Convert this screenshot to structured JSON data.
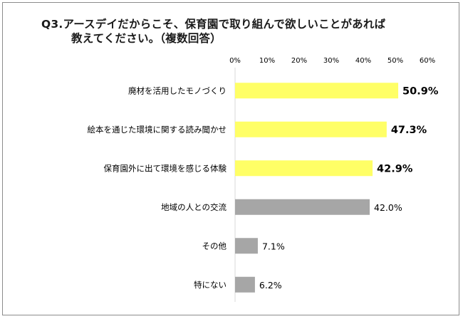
{
  "title": {
    "line1": "Q3.アースデイだからこそ、保育園で取り組んで欲しいことがあれば",
    "line2": "教えてください。（複数回答）"
  },
  "colors": {
    "highlight": "#ffff66",
    "normal": "#a6a6a6",
    "grid": "#d9d9d9",
    "text": "#000000"
  },
  "chart_data": {
    "type": "bar",
    "orientation": "horizontal",
    "categories": [
      "廃材を活用したモノづくり",
      "絵本を通じた環境に関する読み聞かせ",
      "保育園外に出て環境を感じる体験",
      "地域の人との交流",
      "その他",
      "特にない"
    ],
    "values": [
      50.9,
      47.3,
      42.9,
      42.0,
      7.1,
      6.2
    ],
    "value_labels": [
      "50.9%",
      "47.3%",
      "42.9%",
      "42.0%",
      "7.1%",
      "6.2%"
    ],
    "highlighted": [
      true,
      true,
      true,
      false,
      false,
      false
    ],
    "xlim": [
      0,
      60
    ],
    "xticks": [
      "0%",
      "10%",
      "20%",
      "30%",
      "40%",
      "50%",
      "60%"
    ],
    "tick_position": "top"
  }
}
